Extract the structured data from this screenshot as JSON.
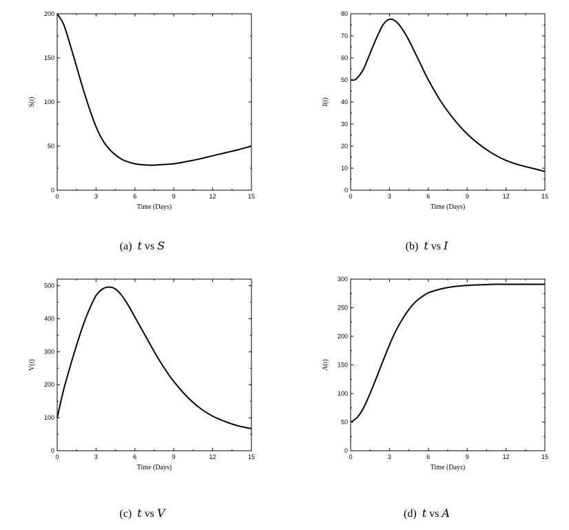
{
  "chart_data": [
    {
      "type": "line",
      "xlabel": "Time (Days)",
      "ylabel": "S(t)",
      "xlim": [
        0,
        15
      ],
      "ylim": [
        0,
        200
      ],
      "xticks": [
        0,
        3,
        6,
        9,
        12,
        15
      ],
      "yticks": [
        0,
        50,
        100,
        150,
        200
      ],
      "caption": {
        "tag": "(a)",
        "x": "t",
        "vs": "vs",
        "y": "S"
      },
      "series": [
        {
          "x": [
            0,
            0.5,
            1,
            1.5,
            2,
            2.5,
            3,
            3.5,
            4,
            4.5,
            5,
            5.5,
            6,
            6.5,
            7,
            7.5,
            8,
            9,
            10,
            11,
            12,
            13,
            14,
            15
          ],
          "y": [
            200,
            188,
            165,
            140,
            115,
            92,
            72,
            57,
            47,
            40,
            35,
            32,
            30,
            29,
            28.5,
            28.5,
            29,
            30,
            32.5,
            35.5,
            39,
            42.5,
            46,
            50
          ]
        }
      ]
    },
    {
      "type": "line",
      "xlabel": "Time (Days)",
      "ylabel": "I(t)",
      "xlim": [
        0,
        15
      ],
      "ylim": [
        0,
        80
      ],
      "xticks": [
        0,
        3,
        6,
        9,
        12,
        15
      ],
      "yticks": [
        0,
        10,
        20,
        30,
        40,
        50,
        60,
        70,
        80
      ],
      "caption": {
        "tag": "(b)",
        "x": "t",
        "vs": "vs",
        "y": "I"
      },
      "series": [
        {
          "x": [
            0,
            0.3,
            0.6,
            1,
            1.5,
            2,
            2.5,
            3,
            3.5,
            4,
            4.5,
            5,
            5.5,
            6,
            7,
            8,
            9,
            10,
            11,
            12,
            13,
            14,
            15
          ],
          "y": [
            50,
            50,
            51.5,
            55,
            62,
            69,
            75,
            77.5,
            76.5,
            73,
            68,
            62,
            56,
            50,
            40,
            32,
            25.5,
            20.5,
            16.5,
            13.5,
            11.5,
            10,
            8.5
          ]
        }
      ]
    },
    {
      "type": "line",
      "xlabel": "Time (Days)",
      "ylabel": "V(t)",
      "xlim": [
        0,
        15
      ],
      "ylim": [
        0,
        520
      ],
      "xticks": [
        0,
        3,
        6,
        9,
        12,
        15
      ],
      "yticks": [
        0,
        100,
        200,
        300,
        400,
        500
      ],
      "caption": {
        "tag": "(c)",
        "x": "t",
        "vs": "vs",
        "y": "V"
      },
      "series": [
        {
          "x": [
            0,
            0.5,
            1,
            1.5,
            2,
            2.5,
            3,
            3.5,
            4,
            4.5,
            5,
            5.5,
            6,
            6.5,
            7,
            7.5,
            8,
            8.5,
            9,
            10,
            11,
            12,
            13,
            14,
            15
          ],
          "y": [
            100,
            185,
            255,
            320,
            380,
            430,
            470,
            490,
            496,
            490,
            470,
            440,
            405,
            370,
            335,
            300,
            267,
            237,
            210,
            165,
            130,
            105,
            88,
            75,
            67
          ]
        }
      ]
    },
    {
      "type": "line",
      "xlabel": "Time (Days)",
      "ylabel": "A(t)",
      "xlim": [
        0,
        15
      ],
      "ylim": [
        0,
        300
      ],
      "xticks": [
        0,
        3,
        6,
        9,
        12,
        15
      ],
      "yticks": [
        0,
        50,
        100,
        150,
        200,
        250,
        300
      ],
      "caption": {
        "tag": "(d)",
        "x": "t",
        "vs": "vs",
        "y": "A"
      },
      "series": [
        {
          "x": [
            0,
            0.5,
            1,
            1.5,
            2,
            2.5,
            3,
            3.5,
            4,
            4.5,
            5,
            5.5,
            6,
            7,
            8,
            9,
            10,
            11,
            12,
            13,
            14,
            15
          ],
          "y": [
            50,
            58,
            75,
            100,
            128,
            157,
            185,
            210,
            230,
            247,
            260,
            269,
            276,
            283,
            287,
            289,
            290,
            291,
            291,
            291,
            291,
            291
          ]
        }
      ]
    }
  ]
}
